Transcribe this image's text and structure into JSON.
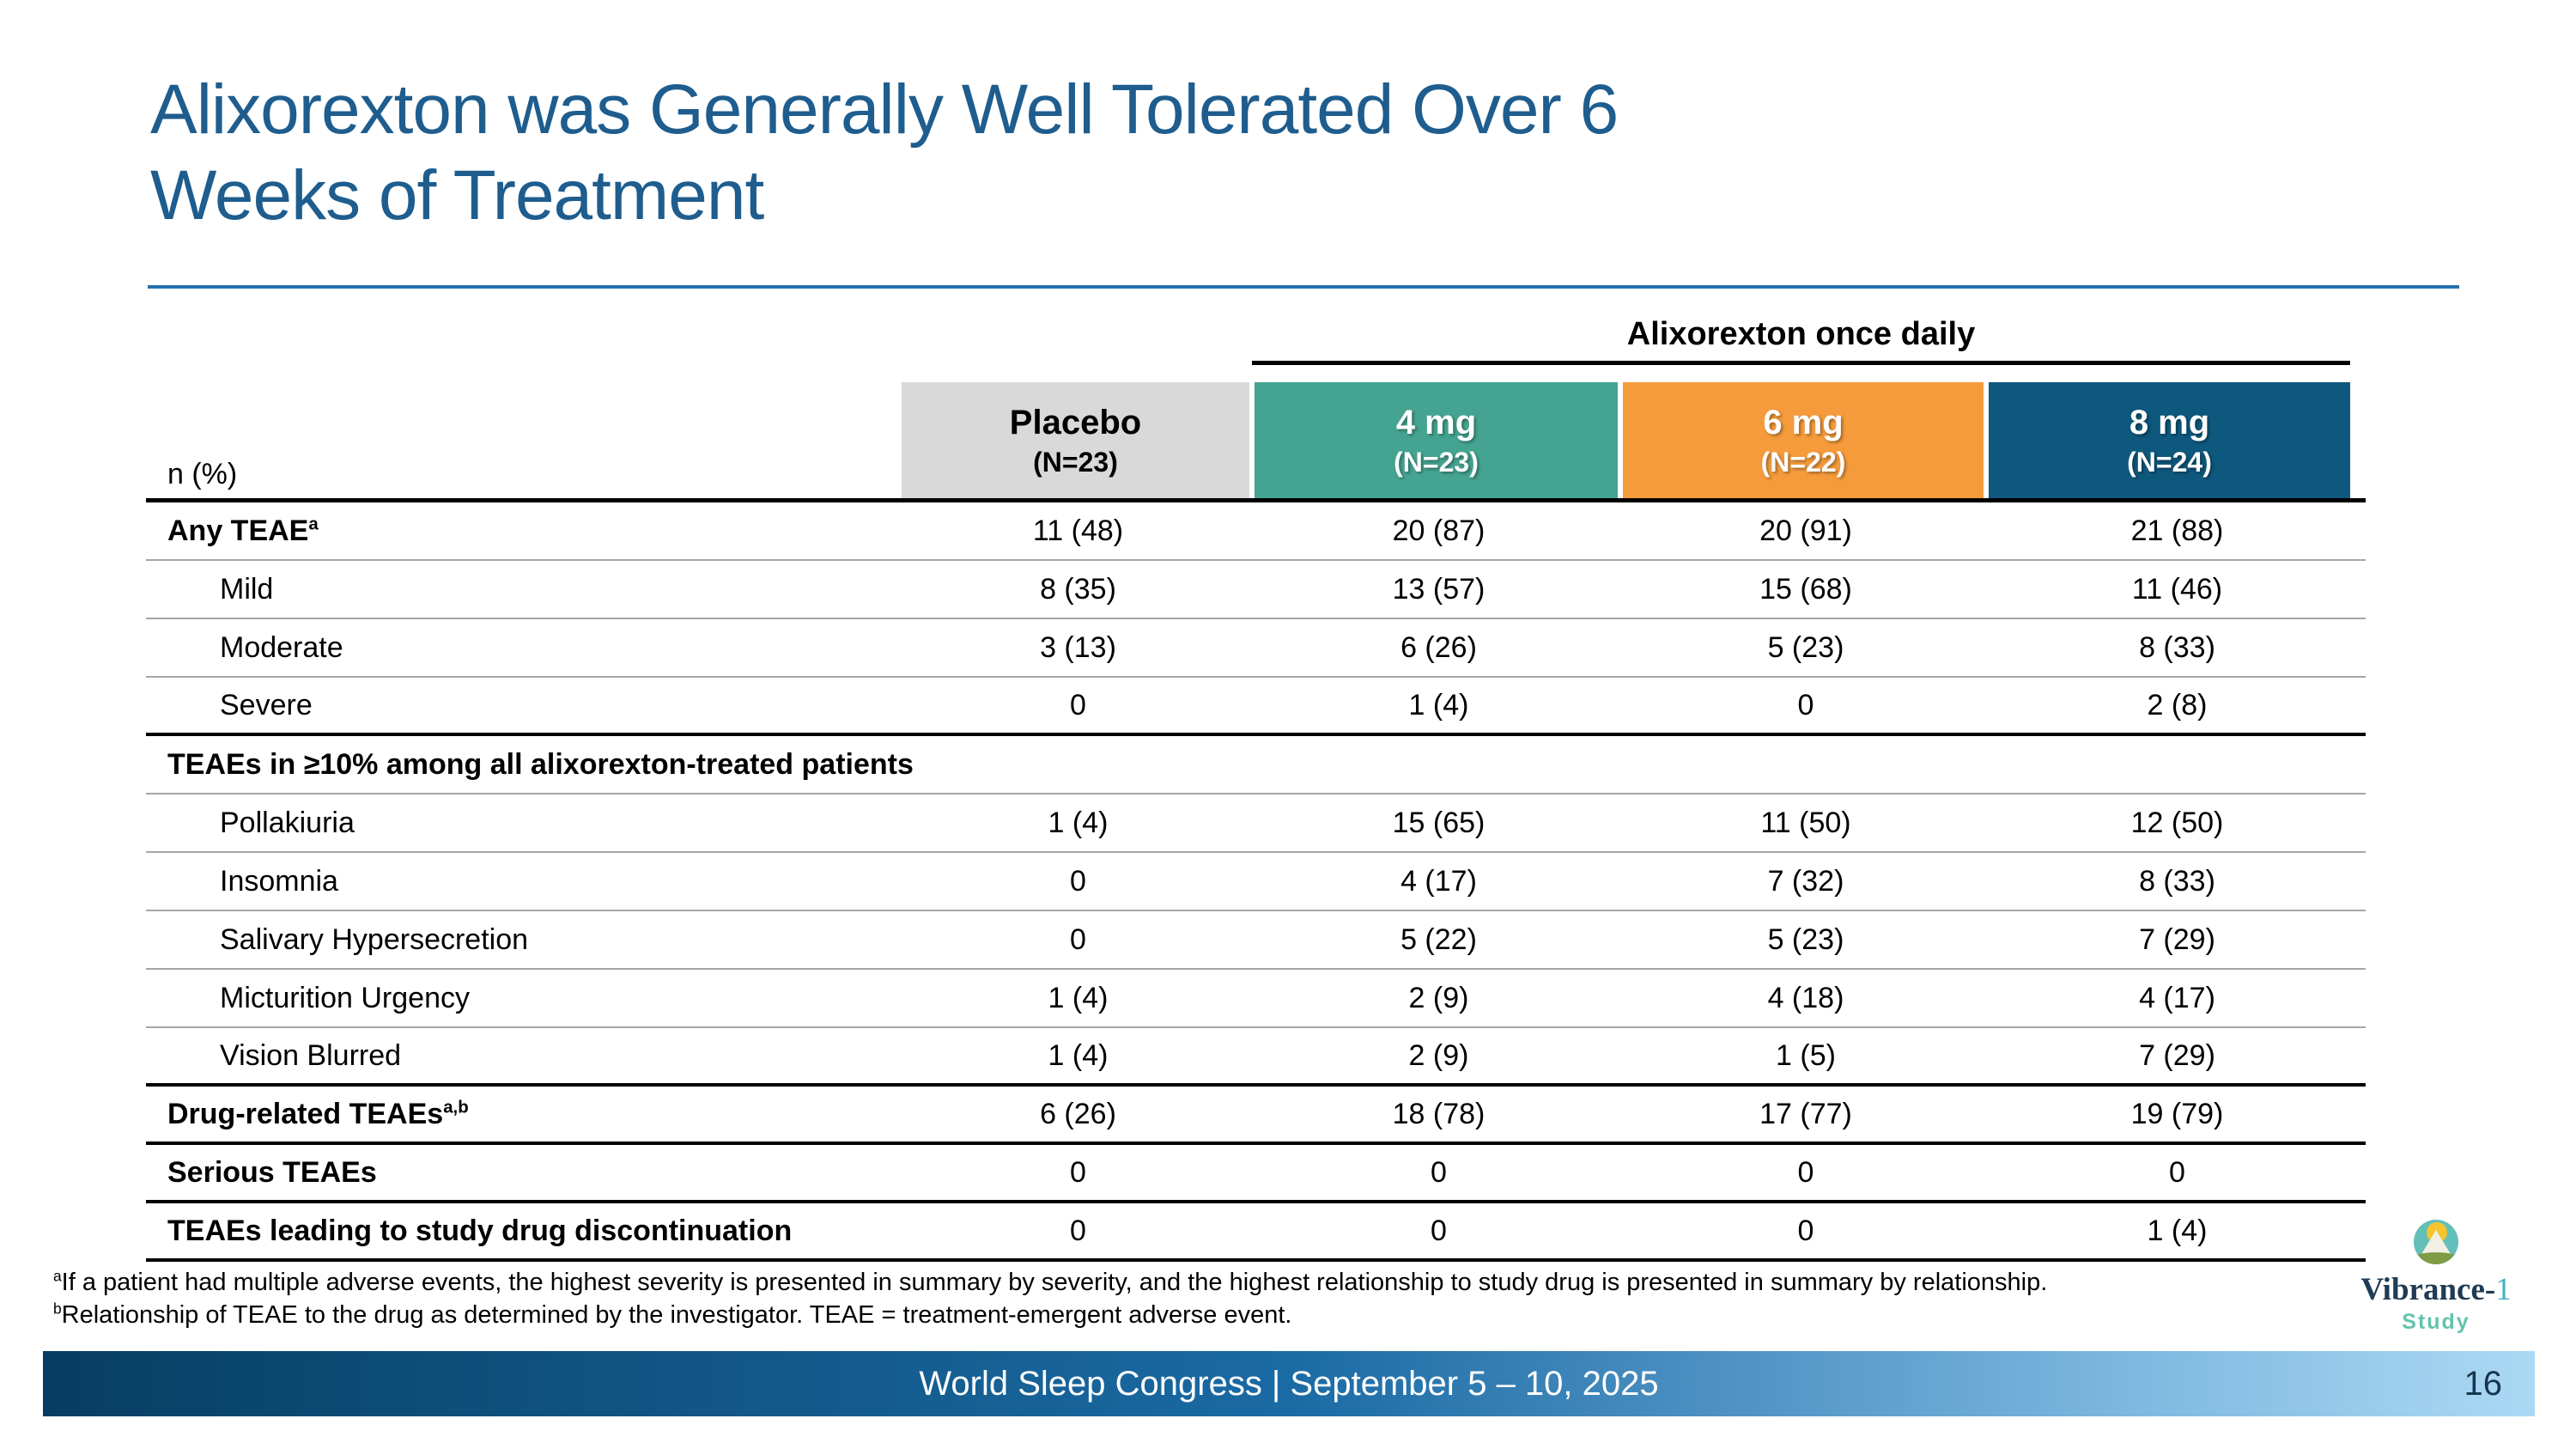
{
  "slide": {
    "title_lines": [
      "Alixorexton was Generally Well Tolerated Over 6",
      "Weeks of Treatment"
    ],
    "footer": {
      "text": "World Sleep Congress | September 5 – 10, 2025",
      "page_number": "16"
    },
    "footnotes": [
      {
        "sup": "a",
        "text": "If a patient had multiple adverse events, the highest severity is presented in summary by severity, and the highest relationship to study drug is presented in summary by relationship."
      },
      {
        "sup": "b",
        "text": "Relationship of TEAE to the drug as determined by the investigator. TEAE = treatment-emergent adverse event."
      }
    ],
    "logo": {
      "name_main": "Vibrance-",
      "name_accent": "1",
      "subtitle": "Study"
    }
  },
  "table": {
    "group_header": "Alixorexton once daily",
    "row_header_label": "n (%)",
    "columns": [
      {
        "label": "Placebo",
        "n": "(N=23)",
        "style": "gray"
      },
      {
        "label": "4 mg",
        "n": "(N=23)",
        "style": "teal"
      },
      {
        "label": "6 mg",
        "n": "(N=22)",
        "style": "orange"
      },
      {
        "label": "8 mg",
        "n": "(N=24)",
        "style": "blue"
      }
    ],
    "rows": [
      {
        "label": "Any TEAE",
        "sup": "a",
        "style": "category",
        "values": [
          "11 (48)",
          "20 (87)",
          "20 (91)",
          "21 (88)"
        ],
        "border": "thin"
      },
      {
        "label": "Mild",
        "style": "sub",
        "values": [
          "8 (35)",
          "13 (57)",
          "15 (68)",
          "11 (46)"
        ],
        "border": "thin"
      },
      {
        "label": "Moderate",
        "style": "sub",
        "values": [
          "3 (13)",
          "6 (26)",
          "5 (23)",
          "8 (33)"
        ],
        "border": "thin"
      },
      {
        "label": "Severe",
        "style": "sub",
        "values": [
          "0",
          "1 (4)",
          "0",
          "2 (8)"
        ],
        "border": "thick"
      },
      {
        "label": "TEAEs in ≥10% among all alixorexton-treated patients",
        "style": "section",
        "values": [
          "",
          "",
          "",
          ""
        ],
        "border": "thin"
      },
      {
        "label": "Pollakiuria",
        "style": "sub",
        "values": [
          "1 (4)",
          "15 (65)",
          "11 (50)",
          "12 (50)"
        ],
        "border": "thin"
      },
      {
        "label": "Insomnia",
        "style": "sub",
        "values": [
          "0",
          "4 (17)",
          "7 (32)",
          "8 (33)"
        ],
        "border": "thin"
      },
      {
        "label": "Salivary Hypersecretion",
        "style": "sub",
        "values": [
          "0",
          "5 (22)",
          "5 (23)",
          "7 (29)"
        ],
        "border": "thin"
      },
      {
        "label": "Micturition Urgency",
        "style": "sub",
        "values": [
          "1 (4)",
          "2 (9)",
          "4 (18)",
          "4 (17)"
        ],
        "border": "thin"
      },
      {
        "label": "Vision Blurred",
        "style": "sub",
        "values": [
          "1 (4)",
          "2 (9)",
          "1 (5)",
          "7 (29)"
        ],
        "border": "thick"
      },
      {
        "label": "Drug-related TEAEs",
        "sup": "a,b",
        "style": "category",
        "values": [
          "6 (26)",
          "18 (78)",
          "17 (77)",
          "19 (79)"
        ],
        "border": "thick"
      },
      {
        "label": "Serious TEAEs",
        "style": "category",
        "values": [
          "0",
          "0",
          "0",
          "0"
        ],
        "border": "thick"
      },
      {
        "label": "TEAEs leading to study drug discontinuation",
        "style": "category",
        "values": [
          "0",
          "0",
          "0",
          "1 (4)"
        ],
        "border": "thick"
      }
    ]
  },
  "colors": {
    "title_blue": "#1E5D8E",
    "title_rule_blue": "#2471AE",
    "placebo_gray": "#D9D9D9",
    "dose_teal": "#45A491",
    "dose_orange": "#F59B3C",
    "dose_dark_blue": "#0E587D",
    "footer_gradient_start": "#083D63",
    "footer_gradient_end": "#ABD9F4",
    "page_number_navy": "#17364E",
    "logo_circle_teal": "#63BFB9",
    "logo_sun_yellow": "#F6C42E",
    "logo_hill_green": "#7E9C45",
    "logo_name_navy": "#1F3B55",
    "logo_accent_teal": "#3FB3C6",
    "logo_study_teal": "#64C3AE"
  }
}
